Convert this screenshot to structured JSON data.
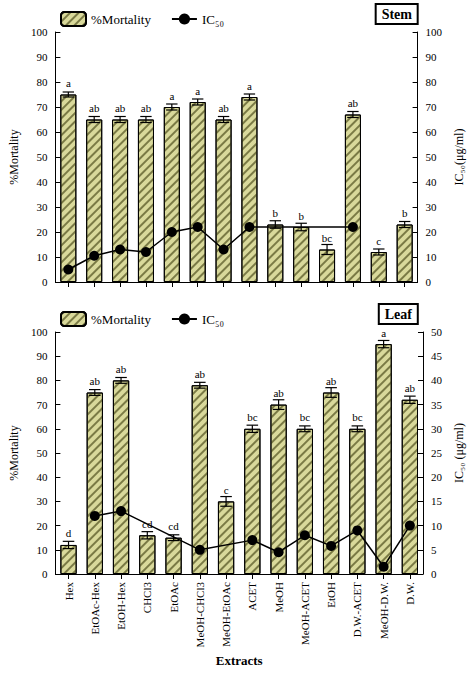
{
  "chart_data": [
    {
      "type": "bar",
      "title": "Stem",
      "categories": [
        "Hex",
        "EtOAc-Hex",
        "EtOH-Hex",
        "CHCl3",
        "EtOAc",
        "MeOH-CHCl3",
        "MeOH-EtOAc",
        "ACET",
        "MeOH",
        "MeOH-ACET",
        "EtOH",
        "D.W.-ACET",
        "MeOH-D.W.",
        "D.W."
      ],
      "ylabel": "%Mortality",
      "y2label": "IC₅₀(μg/ml)",
      "ylim": [
        0,
        100
      ],
      "yticks": [
        0,
        10,
        20,
        30,
        40,
        50,
        60,
        70,
        80,
        90,
        100
      ],
      "y2lim": [
        0,
        100
      ],
      "y2ticks": [
        0,
        10,
        20,
        30,
        40,
        50,
        60,
        70,
        80,
        90,
        100
      ],
      "grid": false,
      "legend": "upper left",
      "tick_labels": "y",
      "series": [
        {
          "name": "%Mortality",
          "type": "bar",
          "color": "#d9d99b",
          "values": [
            75,
            65,
            65,
            65,
            70,
            72,
            65,
            74,
            23,
            22,
            13,
            67,
            12,
            23
          ],
          "errors": [
            1,
            1.2,
            1.2,
            1.2,
            1.2,
            1.2,
            1.2,
            1.2,
            1.5,
            1.5,
            2,
            1.2,
            1.2,
            1.2
          ],
          "letters": [
            "a",
            "ab",
            "ab",
            "ab",
            "a",
            "a",
            "ab",
            "a",
            "b",
            "b",
            "bc",
            "ab",
            "c",
            "b"
          ]
        },
        {
          "name": "IC₅₀",
          "type": "line",
          "axis": "y2",
          "color": "#000000",
          "marker": "circle",
          "values": [
            5,
            10.5,
            13,
            12,
            20,
            22,
            13,
            22,
            null,
            null,
            null,
            22,
            null,
            null
          ]
        }
      ]
    },
    {
      "type": "bar",
      "title": "Leaf",
      "categories": [
        "Hex",
        "EtOAc-Hex",
        "EtOH-Hex",
        "CHCl3",
        "EtOAc",
        "MeOH-CHCl3",
        "MeOH-EtOAc",
        "ACET",
        "MeOH",
        "MeOH-ACET",
        "EtOH",
        "D.W.-ACET",
        "MeOH-D.W.",
        "D.W."
      ],
      "xlabel": "Extracts",
      "ylabel": "%Mortality",
      "y2label": "IC₅₀ (μg/ml)",
      "ylim": [
        0,
        100
      ],
      "yticks": [
        0,
        10,
        20,
        30,
        40,
        50,
        60,
        70,
        80,
        90,
        100
      ],
      "y2lim": [
        0,
        50
      ],
      "y2ticks": [
        0,
        5,
        10,
        15,
        20,
        25,
        30,
        35,
        40,
        45,
        50
      ],
      "grid": false,
      "legend": "upper left",
      "series": [
        {
          "name": "%Mortality",
          "type": "bar",
          "color": "#d9d99b",
          "values": [
            12,
            75,
            80,
            16,
            15,
            78,
            30,
            60,
            70,
            60,
            75,
            60,
            95,
            72
          ],
          "errors": [
            1.5,
            1.2,
            1.2,
            1.5,
            1.2,
            1.2,
            2,
            1.5,
            2,
            1.2,
            2,
            1.2,
            1.5,
            1.5
          ],
          "letters": [
            "d",
            "ab",
            "ab",
            "cd",
            "cd",
            "ab",
            "c",
            "bc",
            "ab",
            "bc",
            "ab",
            "bc",
            "a",
            "ab"
          ]
        },
        {
          "name": "IC₅₀",
          "type": "line",
          "axis": "y2",
          "color": "#000000",
          "marker": "circle",
          "values": [
            null,
            12,
            13,
            null,
            null,
            5,
            null,
            7,
            4.5,
            8,
            5.8,
            9,
            1.5,
            10
          ]
        }
      ]
    }
  ]
}
